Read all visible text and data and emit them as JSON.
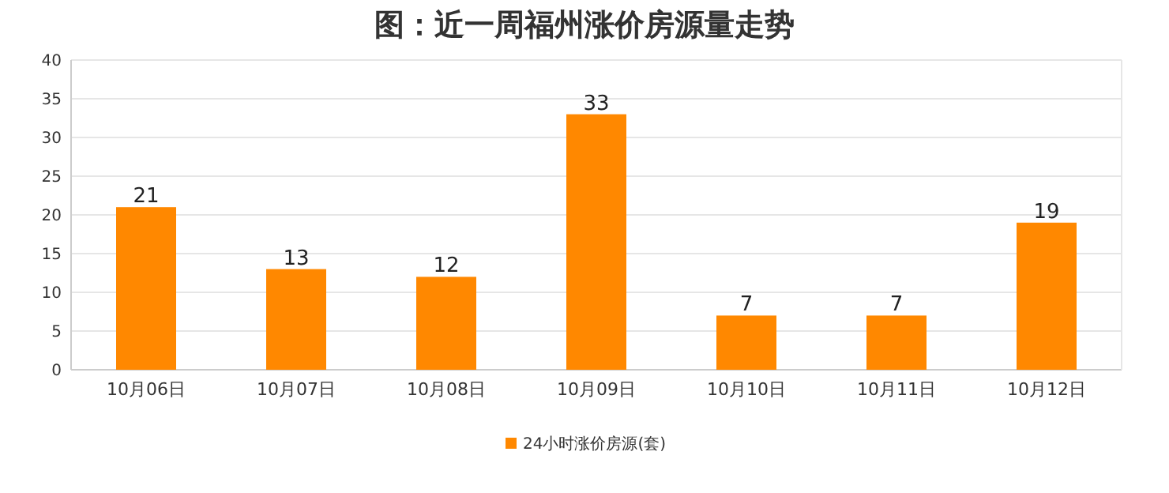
{
  "chart_data": {
    "type": "bar",
    "title": "图：近一周福州涨价房源量走势",
    "categories": [
      "10月06日",
      "10月07日",
      "10月08日",
      "10月09日",
      "10月10日",
      "10月11日",
      "10月12日"
    ],
    "series": [
      {
        "name": "24小时涨价房源(套)",
        "color": "#ff8800",
        "values": [
          21,
          13,
          12,
          33,
          7,
          7,
          19
        ]
      }
    ],
    "ylim": [
      0,
      40
    ],
    "yticks": [
      0,
      5,
      10,
      15,
      20,
      25,
      30,
      35,
      40
    ],
    "grid": "y",
    "data_labels": true,
    "legend": "bottom"
  }
}
